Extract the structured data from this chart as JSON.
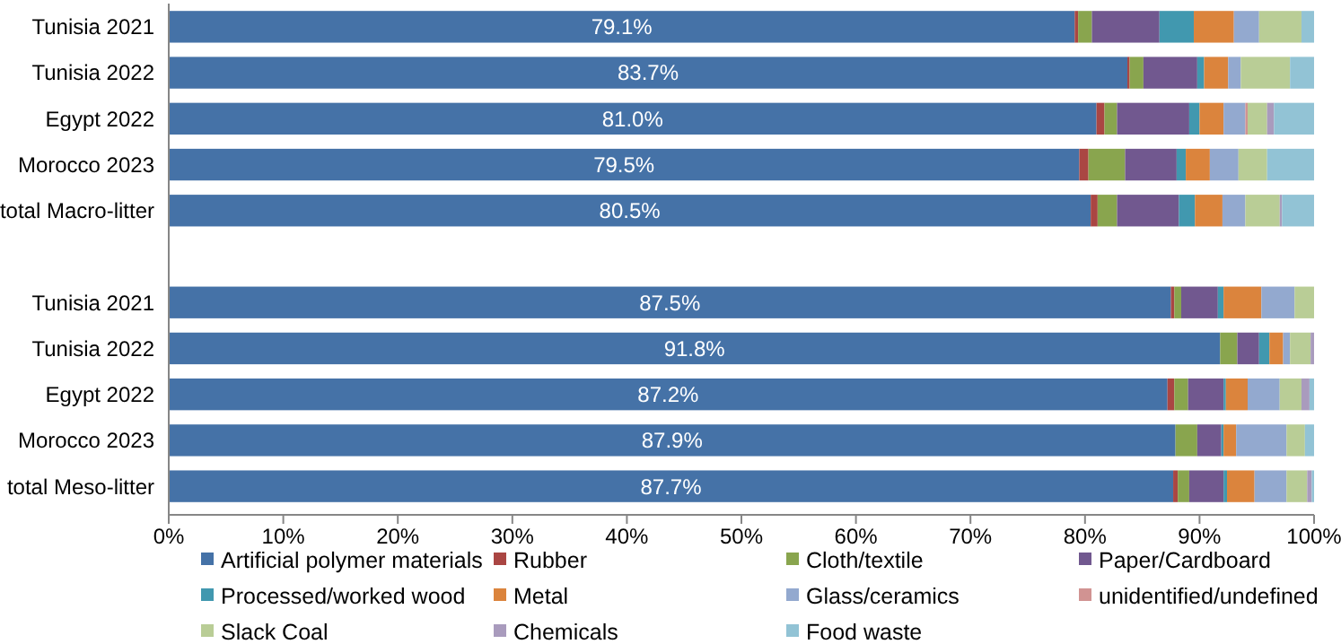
{
  "chart_data": {
    "type": "bar",
    "orientation": "horizontal",
    "stacked": true,
    "categories": [
      "Tunisia 2021",
      "Tunisia 2022",
      "Egypt 2022",
      "Morocco 2023",
      "total Macro-litter",
      null,
      "Tunisia 2021",
      "Tunisia 2022",
      "Egypt 2022",
      "Morocco 2023",
      "total Meso-litter"
    ],
    "series": [
      {
        "name": "Artificial polymer materials",
        "color": "#4572a7",
        "values": [
          79.1,
          83.7,
          81.0,
          79.5,
          80.5,
          null,
          87.5,
          91.8,
          87.2,
          87.9,
          87.7
        ],
        "value_labels": [
          "79.1%",
          "83.7%",
          "81.0%",
          "79.5%",
          "80.5%",
          null,
          "87.5%",
          "91.8%",
          "87.2%",
          "87.9%",
          "87.7%"
        ]
      },
      {
        "name": "Rubber",
        "color": "#aa4643",
        "values": [
          0.3,
          0.2,
          0.7,
          0.8,
          0.6,
          null,
          0.3,
          0,
          0.6,
          0,
          0.4
        ]
      },
      {
        "name": "Cloth/textile",
        "color": "#89a54e",
        "values": [
          1.2,
          1.2,
          1.1,
          3.2,
          1.7,
          null,
          0.6,
          1.5,
          1.2,
          1.9,
          1.0
        ]
      },
      {
        "name": "Paper/Cardboard",
        "color": "#71588f",
        "values": [
          5.9,
          4.7,
          6.3,
          4.5,
          5.4,
          null,
          3.2,
          1.9,
          3.1,
          2.1,
          3.0
        ]
      },
      {
        "name": "Processed/worked wood",
        "color": "#4198af",
        "values": [
          3.0,
          0.6,
          0.9,
          0.8,
          1.4,
          null,
          0.5,
          0.9,
          0.2,
          0.2,
          0.3
        ]
      },
      {
        "name": "Metal",
        "color": "#db843d",
        "values": [
          3.5,
          2.1,
          2.1,
          2.1,
          2.4,
          null,
          3.3,
          1.2,
          1.9,
          1.1,
          2.4
        ]
      },
      {
        "name": "Glass/ceramics",
        "color": "#93a9cf",
        "values": [
          2.2,
          1.1,
          1.9,
          2.5,
          2.0,
          null,
          2.9,
          0.6,
          2.8,
          4.4,
          2.8
        ]
      },
      {
        "name": "unidentified/undefined",
        "color": "#d19392",
        "values": [
          0,
          0,
          0.2,
          0,
          0,
          null,
          0,
          0,
          0,
          0,
          0
        ]
      },
      {
        "name": "Slack Coal",
        "color": "#b9cd96",
        "values": [
          3.7,
          4.3,
          1.7,
          2.5,
          3.0,
          null,
          1.7,
          1.8,
          1.9,
          1.6,
          1.8
        ]
      },
      {
        "name": "Chemicals",
        "color": "#a99bbd",
        "values": [
          0,
          0,
          0.6,
          0,
          0.2,
          null,
          0,
          0.3,
          0.7,
          0,
          0.4
        ]
      },
      {
        "name": "Food waste",
        "color": "#92c3d5",
        "values": [
          1.1,
          2.1,
          3.5,
          4.1,
          2.8,
          null,
          0,
          0,
          0.4,
          0.8,
          0.2
        ]
      }
    ],
    "xlim": [
      0,
      100
    ],
    "xticks": [
      {
        "value": 0,
        "label": "0%"
      },
      {
        "value": 10,
        "label": "10%"
      },
      {
        "value": 20,
        "label": "20%"
      },
      {
        "value": 30,
        "label": "30%"
      },
      {
        "value": 40,
        "label": "40%"
      },
      {
        "value": 50,
        "label": "50%"
      },
      {
        "value": 60,
        "label": "60%"
      },
      {
        "value": 70,
        "label": "70%"
      },
      {
        "value": 80,
        "label": "80%"
      },
      {
        "value": 90,
        "label": "90%"
      },
      {
        "value": 100,
        "label": "100%"
      }
    ],
    "grid": false,
    "legend": "bottom"
  }
}
